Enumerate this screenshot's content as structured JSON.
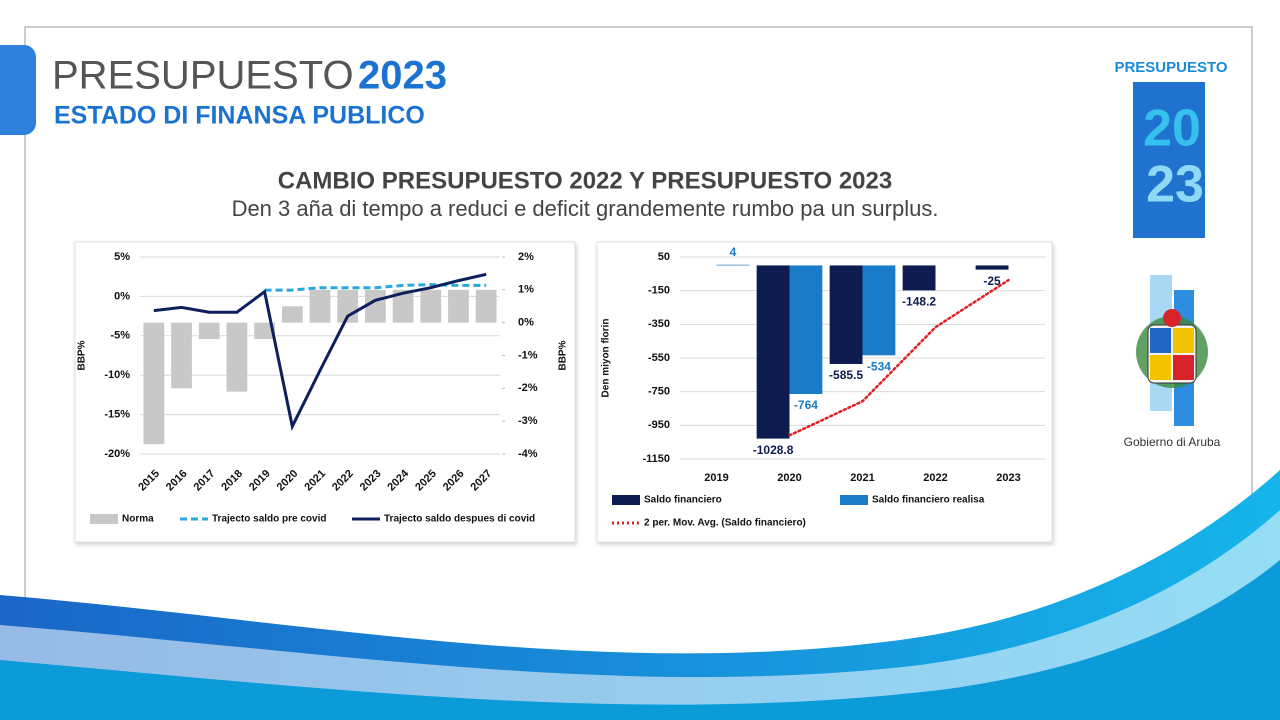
{
  "slide": {
    "title": "PRESUPUESTO",
    "title_year": "2023",
    "subtitle": "ESTADO DI FINANSA PUBLICO",
    "heading": "CAMBIO PRESUPUESTO 2022 Y PRESUPUESTO 2023",
    "subheading": "Den 3 aña di tempo a reduci e deficit grandemente rumbo pa un surplus.",
    "logo": {
      "title": "PRESUPUESTO",
      "year_lines": [
        "20",
        "23"
      ]
    },
    "emblem_caption": "Gobierno di Aruba"
  },
  "chart_data": [
    {
      "type": "bar",
      "categories": [
        "2015",
        "2016",
        "2017",
        "2018",
        "2019",
        "2020",
        "2021",
        "2022",
        "2023",
        "2024",
        "2025",
        "2026",
        "2027"
      ],
      "y_label": "BBP%",
      "y2_label": "BBP%",
      "ylim": [
        -20,
        5
      ],
      "yticks": [
        {
          "value": 5,
          "label": "5%"
        },
        {
          "value": 0,
          "label": "0%"
        },
        {
          "value": -5,
          "label": "-5%"
        },
        {
          "value": -10,
          "label": "-10%"
        },
        {
          "value": -15,
          "label": "-15%"
        },
        {
          "value": -20,
          "label": "-20%"
        }
      ],
      "y2lim": [
        -4,
        2
      ],
      "y2ticks": [
        {
          "value": 2,
          "label": "2%"
        },
        {
          "value": 1,
          "label": "1%"
        },
        {
          "value": 0,
          "label": "0%"
        },
        {
          "value": -1,
          "label": "-1%"
        },
        {
          "value": -2,
          "label": "-2%"
        },
        {
          "value": -3,
          "label": "-3%"
        },
        {
          "value": -4,
          "label": "-4%"
        }
      ],
      "grid": true,
      "series": [
        {
          "name": "Norma",
          "type": "bar",
          "axis": "y2",
          "color": "#c8c8c8",
          "values": [
            -3.7,
            -2.0,
            -0.5,
            -2.1,
            -0.5,
            0.5,
            1.0,
            1.0,
            1.0,
            1.0,
            1.0,
            1.0,
            1.0
          ]
        },
        {
          "name": "Trajecto saldo pre covid",
          "type": "line",
          "style": "dashed",
          "color": "#29a8e0",
          "values": [
            null,
            null,
            null,
            null,
            0.8,
            0.8,
            1.1,
            1.1,
            1.1,
            1.4,
            1.5,
            1.4,
            1.4
          ]
        },
        {
          "name": "Trajecto saldo despues di covid",
          "type": "line",
          "style": "solid",
          "color": "#0d1f5c",
          "values": [
            -1.8,
            -1.4,
            -2.0,
            -2.0,
            0.6,
            -16.5,
            -9.4,
            -2.5,
            -0.5,
            0.4,
            1.1,
            2.0,
            2.8
          ]
        }
      ]
    },
    {
      "type": "bar",
      "categories": [
        "2019",
        "2020",
        "2021",
        "2022",
        "2023"
      ],
      "y_label": "Den miyon florin",
      "ylim": [
        -1150,
        50
      ],
      "yticks": [
        50,
        -150,
        -350,
        -550,
        -750,
        -950,
        -1150
      ],
      "grid": true,
      "series": [
        {
          "name": "Saldo financiero",
          "type": "bar",
          "color": "#0d1b4f",
          "label_color": "#0d1b4f",
          "values": [
            null,
            -1028.8,
            -585.5,
            -148.2,
            -25
          ]
        },
        {
          "name": "Saldo financiero realisa",
          "type": "bar",
          "color": "#1a7cc9",
          "label_color": "#1a7cc9",
          "values": [
            4,
            -764,
            -534,
            null,
            null
          ]
        },
        {
          "name": "2 per. Mov. Avg. (Saldo financiero)",
          "type": "line",
          "style": "dotted",
          "color": "#e02020",
          "values": [
            null,
            -1010,
            -807,
            -367,
            -87
          ]
        }
      ]
    }
  ]
}
